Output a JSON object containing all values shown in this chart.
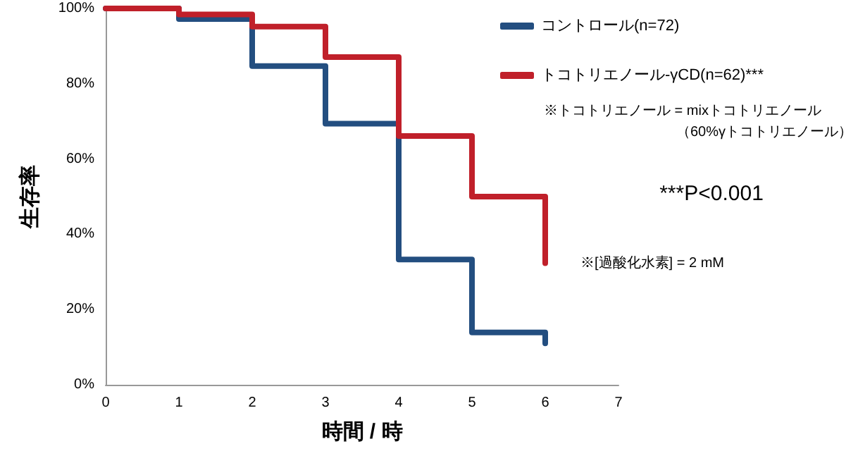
{
  "chart_data": {
    "type": "step",
    "x": [
      0,
      1,
      2,
      3,
      4,
      5,
      6
    ],
    "series": [
      {
        "name": "コントロール(n=72)",
        "color": "#234e80",
        "values": [
          100,
          97.2,
          84.7,
          69.4,
          33.3,
          13.9,
          11
        ]
      },
      {
        "name": "トコトリエノール-γCD(n=62)***",
        "color": "#c0202a",
        "values": [
          100,
          98.4,
          95.2,
          87.1,
          66.1,
          50,
          32.3
        ]
      }
    ],
    "xlabel": "時間 / 時",
    "ylabel": "生存率",
    "xlim": [
      0,
      7
    ],
    "xticks": [
      0,
      1,
      2,
      3,
      4,
      5,
      6,
      7
    ],
    "ylim": [
      0,
      100
    ],
    "yticks": [
      {
        "value": 0,
        "label": "0%"
      },
      {
        "value": 20,
        "label": "20%"
      },
      {
        "value": 40,
        "label": "40%"
      },
      {
        "value": 60,
        "label": "60%"
      },
      {
        "value": 80,
        "label": "80%"
      },
      {
        "value": 100,
        "label": "100%"
      }
    ],
    "annotations": [
      "※トコトリエノール = mixトコトリエノール",
      "（60%γトコトリエノール）",
      "***P<0.001",
      "※[過酸化水素] = 2 mM"
    ],
    "legend": "top right",
    "grid": false,
    "marker": "none",
    "line_style": "solid"
  }
}
